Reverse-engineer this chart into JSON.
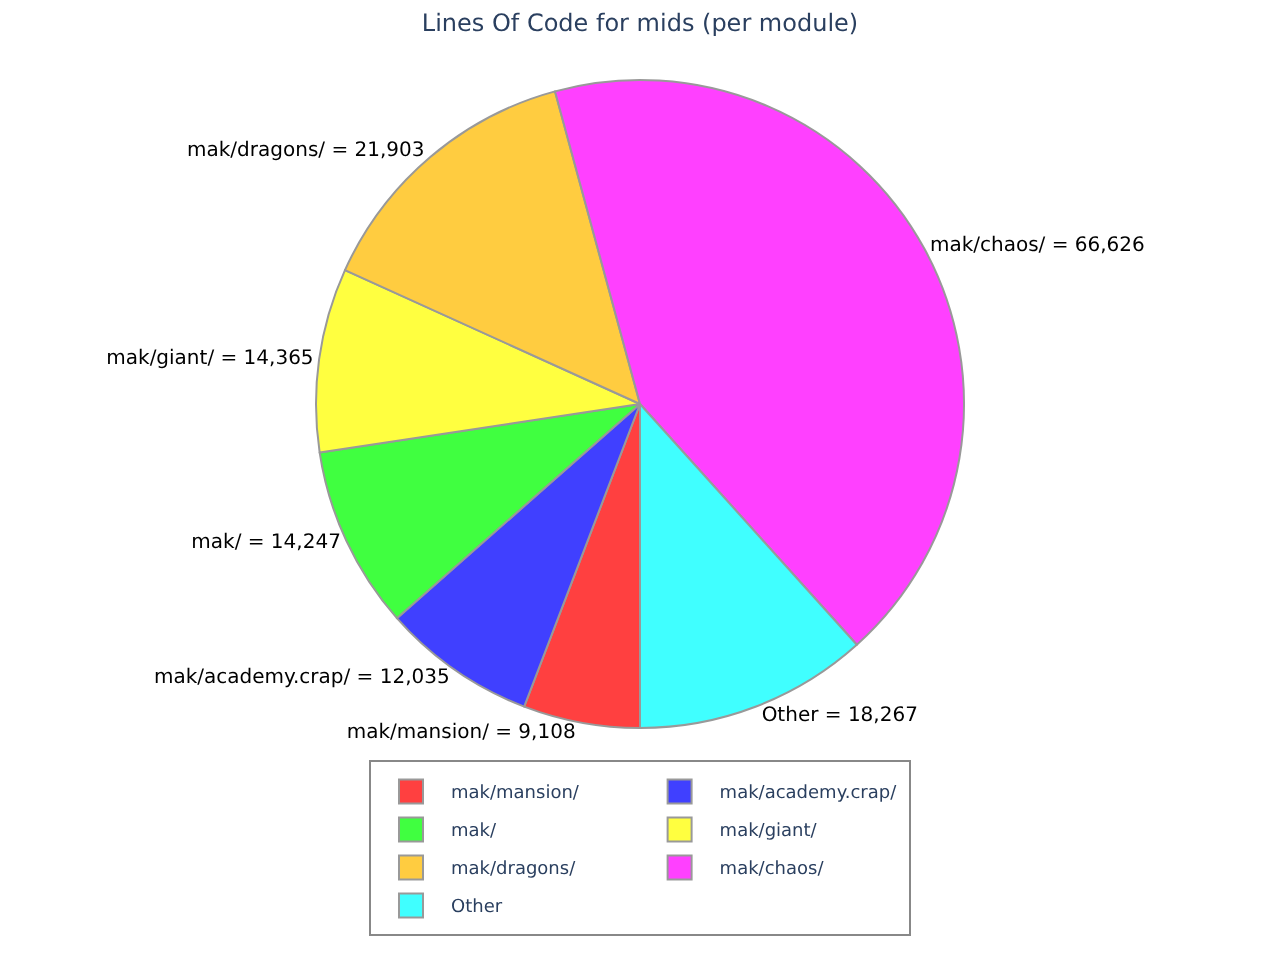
{
  "chart_data": {
    "type": "pie",
    "title": "Lines Of Code for mids (per module)",
    "categories": [
      "mak/mansion/",
      "mak/academy.crap/",
      "mak/",
      "mak/giant/",
      "mak/dragons/",
      "mak/chaos/",
      "Other"
    ],
    "values": [
      9108,
      12035,
      14247,
      14365,
      21903,
      66626,
      18267
    ],
    "colors": [
      "#ff4040",
      "#4040ff",
      "#40ff40",
      "#ffff40",
      "#ffcc40",
      "#ff40ff",
      "#40ffff"
    ],
    "value_labels": [
      "mak/mansion/ = 9,108",
      "mak/academy.crap/ = 12,035",
      "mak/ = 14,247",
      "mak/giant/ = 14,365",
      "mak/dragons/ = 21,903",
      "mak/chaos/ = 66,626",
      "Other = 18,267"
    ],
    "legend": "bottom"
  }
}
